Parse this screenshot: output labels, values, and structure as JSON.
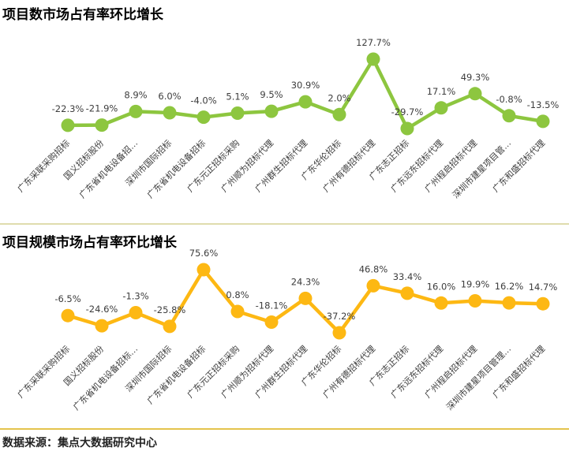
{
  "chart_data": [
    {
      "type": "line",
      "title": "项目数市场占有率环比增长",
      "color": "#8DC63F",
      "legend": "none",
      "grid": "off",
      "axes": "hidden",
      "categories": [
        "广东采联采购招标",
        "国义招标股份",
        "广东省机电设备招…",
        "深圳市国际招标",
        "广东省机电设备招标",
        "广东元正招标采购",
        "广州顺为招标代理",
        "广州群生招标代理",
        "广东华伦招标",
        "广州有德招标代理",
        "广东志正招标",
        "广东远东招标代理",
        "广州程启招标代理",
        "深圳市建星项目管…",
        "广东和盛招标代理"
      ],
      "values": [
        -22.3,
        -21.9,
        8.9,
        6.0,
        -4.0,
        5.1,
        9.5,
        30.9,
        2.0,
        127.7,
        -29.7,
        17.1,
        49.3,
        -0.8,
        -13.5
      ],
      "value_labels": [
        "-22.3%",
        "-21.9%",
        "8.9%",
        "6.0%",
        "-4.0%",
        "5.1%",
        "9.5%",
        "30.9%",
        "2.0%",
        "127.7%",
        "-29.7%",
        "17.1%",
        "49.3%",
        "-0.8%",
        "-13.5%"
      ],
      "ylim": [
        -29.7,
        127.7
      ]
    },
    {
      "type": "line",
      "title": "项目规模市场占有率环比增长",
      "color": "#FDB813",
      "legend": "none",
      "grid": "off",
      "axes": "hidden",
      "categories": [
        "广东采联采购招标",
        "国义招标股份",
        "广东省机电设备招标…",
        "深圳市国际招标",
        "广东省机电设备招标",
        "广东元正招标采购",
        "广州顺为招标代理",
        "广州群生招标代理",
        "广东华伦招标",
        "广州有德招标代理",
        "广东志正招标",
        "广东远东招标代理",
        "广州程启招标代理",
        "深圳市建星项目管理…",
        "广东和盛招标代理"
      ],
      "values": [
        -6.5,
        -24.6,
        -1.3,
        -25.8,
        75.6,
        0.8,
        -18.1,
        24.3,
        -37.2,
        46.8,
        33.4,
        16.0,
        19.9,
        16.2,
        14.7
      ],
      "value_labels": [
        "-6.5%",
        "-24.6%",
        "-1.3%",
        "-25.8%",
        "75.6%",
        "0.8%",
        "-18.1%",
        "24.3%",
        "-37.2%",
        "46.8%",
        "33.4%",
        "16.0%",
        "19.9%",
        "16.2%",
        "14.7%"
      ],
      "ylim": [
        -37.2,
        75.6
      ]
    }
  ],
  "footer": {
    "source": "数据来源：集点大数据研究中心"
  },
  "colors": {
    "chart1_series": "#8DC63F",
    "chart2_series": "#FDB813",
    "section_divider": "#DFDCAD",
    "footer_rule": "#E4C44C",
    "text": "#3d3d3d"
  }
}
